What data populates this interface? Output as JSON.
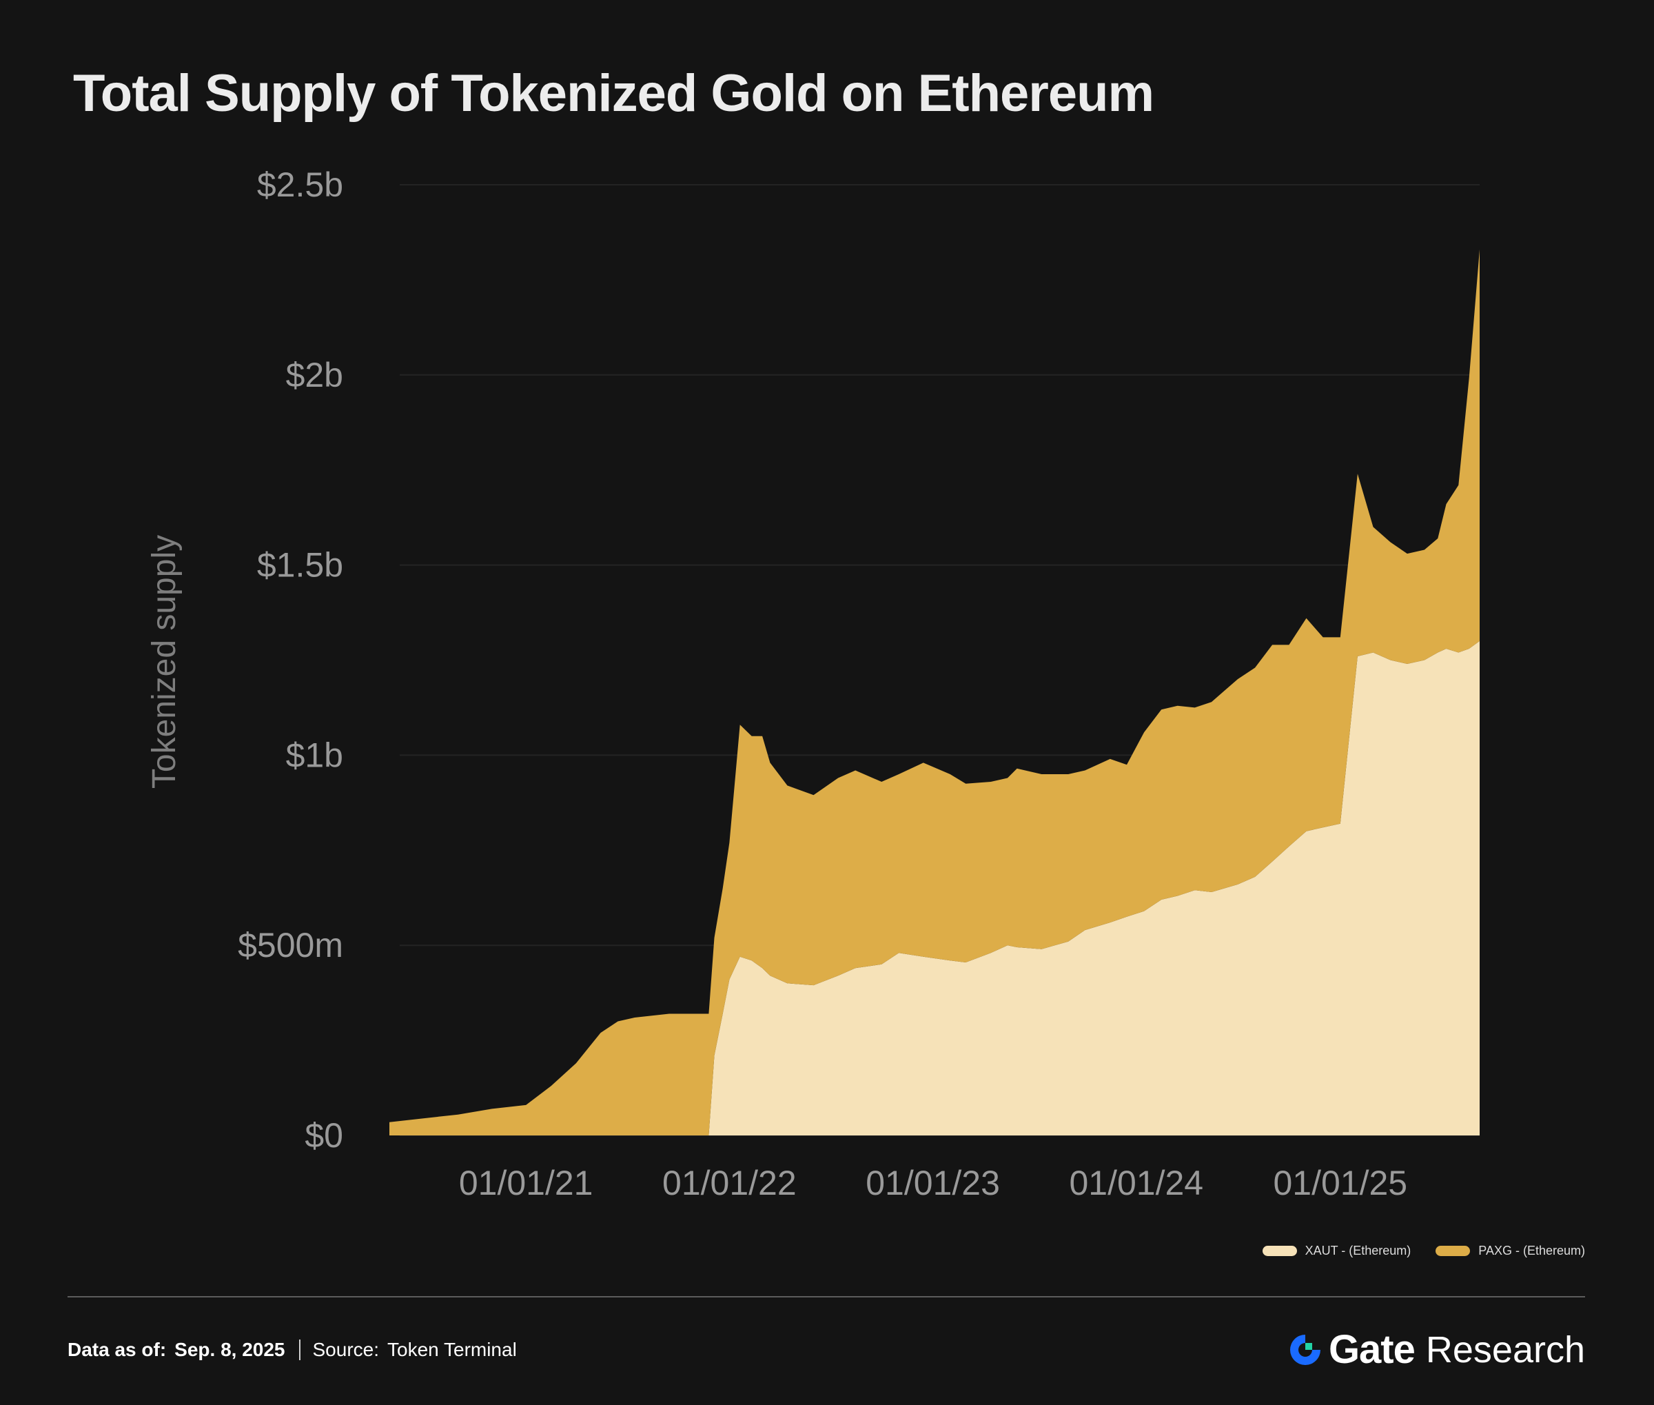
{
  "title": "Total Supply of Tokenized Gold on Ethereum",
  "chart_data": {
    "type": "area",
    "stacked": true,
    "title": "Total Supply of Tokenized Gold on Ethereum",
    "ylabel": "Tokenized supply",
    "xlabel": "",
    "ylim": [
      0,
      2500
    ],
    "y_unit": "millions USD",
    "y_ticks": [
      {
        "value": 0,
        "label": "$0"
      },
      {
        "value": 500,
        "label": "$500m"
      },
      {
        "value": 1000,
        "label": "$1b"
      },
      {
        "value": 1500,
        "label": "$1.5b"
      },
      {
        "value": 2000,
        "label": "$2b"
      },
      {
        "value": 2500,
        "label": "$2.5b"
      }
    ],
    "x_ticks": [
      {
        "date": "2021-01-01",
        "label": "01/01/21"
      },
      {
        "date": "2022-01-01",
        "label": "01/01/22"
      },
      {
        "date": "2023-01-01",
        "label": "01/01/23"
      },
      {
        "date": "2024-01-01",
        "label": "01/01/24"
      },
      {
        "date": "2025-01-01",
        "label": "01/01/25"
      }
    ],
    "x": [
      "2020-05-01",
      "2020-07-01",
      "2020-09-01",
      "2020-11-01",
      "2021-01-01",
      "2021-02-15",
      "2021-04-01",
      "2021-05-15",
      "2021-06-15",
      "2021-07-15",
      "2021-08-15",
      "2021-09-15",
      "2021-10-15",
      "2021-11-15",
      "2021-11-25",
      "2021-12-05",
      "2021-12-20",
      "2022-01-01",
      "2022-01-20",
      "2022-02-10",
      "2022-03-01",
      "2022-03-15",
      "2022-04-15",
      "2022-06-01",
      "2022-07-15",
      "2022-08-15",
      "2022-10-01",
      "2022-11-01",
      "2022-12-15",
      "2023-02-01",
      "2023-03-01",
      "2023-04-15",
      "2023-05-15",
      "2023-06-01",
      "2023-07-15",
      "2023-09-01",
      "2023-10-01",
      "2023-11-15",
      "2023-12-15",
      "2024-01-15",
      "2024-02-15",
      "2024-03-15",
      "2024-04-15",
      "2024-05-15",
      "2024-07-01",
      "2024-08-01",
      "2024-09-01",
      "2024-10-01",
      "2024-11-01",
      "2024-12-01",
      "2025-01-01",
      "2025-02-01",
      "2025-03-01",
      "2025-04-01",
      "2025-05-01",
      "2025-06-01",
      "2025-06-25",
      "2025-07-10",
      "2025-08-01",
      "2025-08-20",
      "2025-09-08"
    ],
    "series": [
      {
        "name": "XAUT - (Ethereum)",
        "color": "#f6e2b8",
        "values": [
          0,
          0,
          0,
          0,
          0,
          0,
          0,
          0,
          0,
          0,
          0,
          0,
          0,
          0,
          0,
          210,
          320,
          410,
          470,
          460,
          440,
          420,
          400,
          395,
          420,
          440,
          450,
          480,
          470,
          460,
          455,
          480,
          500,
          495,
          490,
          510,
          540,
          560,
          575,
          590,
          620,
          630,
          645,
          640,
          660,
          680,
          720,
          760,
          800,
          810,
          820,
          1260,
          1270,
          1250,
          1240,
          1250,
          1270,
          1280,
          1270,
          1280,
          1300
        ]
      },
      {
        "name": "PAXG - (Ethereum)",
        "color": "#ddad48",
        "values": [
          35,
          45,
          55,
          70,
          80,
          130,
          190,
          270,
          300,
          310,
          315,
          320,
          320,
          320,
          320,
          310,
          330,
          360,
          610,
          590,
          610,
          560,
          520,
          500,
          520,
          520,
          480,
          470,
          510,
          490,
          470,
          450,
          440,
          470,
          460,
          440,
          420,
          430,
          400,
          470,
          500,
          500,
          480,
          500,
          540,
          550,
          570,
          530,
          560,
          500,
          490,
          480,
          330,
          310,
          290,
          290,
          300,
          380,
          440,
          710,
          1030
        ]
      }
    ],
    "legend_position": "bottom-right",
    "grid": true
  },
  "legend": [
    {
      "label": "XAUT - (Ethereum)",
      "color": "#f6e2b8"
    },
    {
      "label": "PAXG - (Ethereum)",
      "color": "#ddad48"
    }
  ],
  "footer": {
    "data_as_of_label": "Data as of:",
    "data_as_of_value": "Sep. 8, 2025",
    "source_label": "Source:",
    "source_value": "Token Terminal"
  },
  "brand": {
    "name": "Gate",
    "suffix": "Research",
    "logo_icon": "gate-logo-icon",
    "logo_colors": [
      "#1a6bff",
      "#22d3a6"
    ]
  }
}
